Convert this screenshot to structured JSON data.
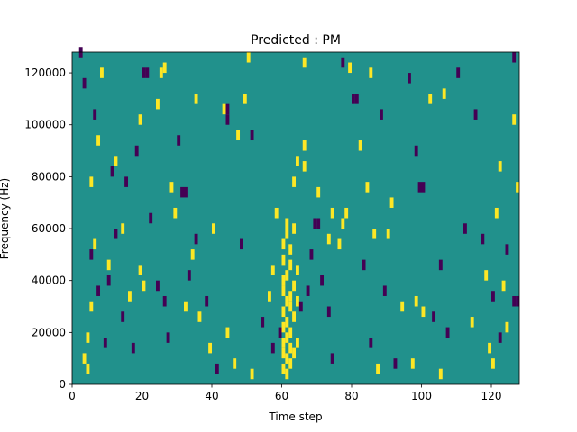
{
  "chart_data": {
    "type": "heatmap",
    "title": "Predicted : PM",
    "xlabel": "Time step",
    "ylabel": "Frequency (Hz)",
    "xlim": [
      0,
      128
    ],
    "ylim": [
      0,
      128000
    ],
    "x_ticks": [
      0,
      20,
      40,
      60,
      80,
      100,
      120
    ],
    "y_ticks": [
      0,
      20000,
      40000,
      60000,
      80000,
      100000,
      120000
    ],
    "colormap": "viridis",
    "colors": {
      "background": "#21918c",
      "high": "#fde725",
      "low": "#440154"
    },
    "cell_width_steps": 1,
    "cell_height_hz": 4000,
    "background_value": 0,
    "sparse_cells": [
      {
        "t": 3,
        "f": 8000,
        "v": 1
      },
      {
        "t": 4,
        "f": 4000,
        "v": 1
      },
      {
        "t": 4,
        "f": 16000,
        "v": 1
      },
      {
        "t": 5,
        "f": 28000,
        "v": 1
      },
      {
        "t": 6,
        "f": 52000,
        "v": 1
      },
      {
        "t": 5,
        "f": 76000,
        "v": 1
      },
      {
        "t": 7,
        "f": 92000,
        "v": 1
      },
      {
        "t": 8,
        "f": 118000,
        "v": 1
      },
      {
        "t": 10,
        "f": 44000,
        "v": 1
      },
      {
        "t": 12,
        "f": 84000,
        "v": 1
      },
      {
        "t": 14,
        "f": 58000,
        "v": 1
      },
      {
        "t": 16,
        "f": 32000,
        "v": 1
      },
      {
        "t": 19,
        "f": 42000,
        "v": 1
      },
      {
        "t": 20,
        "f": 36000,
        "v": 1
      },
      {
        "t": 19,
        "f": 100000,
        "v": 1
      },
      {
        "t": 24,
        "f": 106000,
        "v": 1
      },
      {
        "t": 25,
        "f": 118000,
        "v": 1
      },
      {
        "t": 26,
        "f": 120000,
        "v": 1
      },
      {
        "t": 28,
        "f": 74000,
        "v": 1
      },
      {
        "t": 29,
        "f": 64000,
        "v": 1
      },
      {
        "t": 32,
        "f": 28000,
        "v": 1
      },
      {
        "t": 34,
        "f": 48000,
        "v": 1
      },
      {
        "t": 35,
        "f": 108000,
        "v": 1
      },
      {
        "t": 36,
        "f": 24000,
        "v": 1
      },
      {
        "t": 39,
        "f": 12000,
        "v": 1
      },
      {
        "t": 40,
        "f": 58000,
        "v": 1
      },
      {
        "t": 43,
        "f": 104000,
        "v": 1
      },
      {
        "t": 44,
        "f": 18000,
        "v": 1
      },
      {
        "t": 46,
        "f": 6000,
        "v": 1
      },
      {
        "t": 47,
        "f": 94000,
        "v": 1
      },
      {
        "t": 49,
        "f": 108000,
        "v": 1
      },
      {
        "t": 50,
        "f": 124000,
        "v": 1
      },
      {
        "t": 51,
        "f": 2000,
        "v": 1
      },
      {
        "t": 56,
        "f": 32000,
        "v": 1
      },
      {
        "t": 57,
        "f": 42000,
        "v": 1
      },
      {
        "t": 58,
        "f": 64000,
        "v": 1
      },
      {
        "t": 60,
        "f": 4000,
        "v": 1
      },
      {
        "t": 60,
        "f": 10000,
        "v": 1
      },
      {
        "t": 60,
        "f": 14000,
        "v": 1
      },
      {
        "t": 60,
        "f": 20000,
        "v": 1
      },
      {
        "t": 60,
        "f": 26000,
        "v": 1
      },
      {
        "t": 60,
        "f": 34000,
        "v": 1
      },
      {
        "t": 60,
        "f": 38000,
        "v": 1
      },
      {
        "t": 60,
        "f": 46000,
        "v": 1
      },
      {
        "t": 60,
        "f": 52000,
        "v": 1
      },
      {
        "t": 61,
        "f": 2000,
        "v": 1
      },
      {
        "t": 61,
        "f": 8000,
        "v": 1
      },
      {
        "t": 61,
        "f": 16000,
        "v": 1
      },
      {
        "t": 61,
        "f": 22000,
        "v": 1
      },
      {
        "t": 61,
        "f": 30000,
        "v": 1
      },
      {
        "t": 61,
        "f": 40000,
        "v": 1
      },
      {
        "t": 61,
        "f": 56000,
        "v": 1
      },
      {
        "t": 61,
        "f": 60000,
        "v": 1
      },
      {
        "t": 62,
        "f": 6000,
        "v": 1
      },
      {
        "t": 62,
        "f": 12000,
        "v": 1
      },
      {
        "t": 62,
        "f": 18000,
        "v": 1
      },
      {
        "t": 62,
        "f": 28000,
        "v": 1
      },
      {
        "t": 62,
        "f": 32000,
        "v": 1
      },
      {
        "t": 62,
        "f": 44000,
        "v": 1
      },
      {
        "t": 62,
        "f": 50000,
        "v": 1
      },
      {
        "t": 63,
        "f": 10000,
        "v": 1
      },
      {
        "t": 63,
        "f": 24000,
        "v": 1
      },
      {
        "t": 63,
        "f": 36000,
        "v": 1
      },
      {
        "t": 63,
        "f": 58000,
        "v": 1
      },
      {
        "t": 64,
        "f": 14000,
        "v": 1
      },
      {
        "t": 64,
        "f": 30000,
        "v": 1
      },
      {
        "t": 64,
        "f": 42000,
        "v": 1
      },
      {
        "t": 63,
        "f": 76000,
        "v": 1
      },
      {
        "t": 64,
        "f": 84000,
        "v": 1
      },
      {
        "t": 66,
        "f": 82000,
        "v": 1
      },
      {
        "t": 66,
        "f": 90000,
        "v": 1
      },
      {
        "t": 66,
        "f": 122000,
        "v": 1
      },
      {
        "t": 70,
        "f": 72000,
        "v": 1
      },
      {
        "t": 73,
        "f": 54000,
        "v": 1
      },
      {
        "t": 74,
        "f": 64000,
        "v": 1
      },
      {
        "t": 76,
        "f": 52000,
        "v": 1
      },
      {
        "t": 77,
        "f": 60000,
        "v": 1
      },
      {
        "t": 78,
        "f": 64000,
        "v": 1
      },
      {
        "t": 79,
        "f": 120000,
        "v": 1
      },
      {
        "t": 82,
        "f": 90000,
        "v": 1
      },
      {
        "t": 84,
        "f": 74000,
        "v": 1
      },
      {
        "t": 85,
        "f": 118000,
        "v": 1
      },
      {
        "t": 86,
        "f": 56000,
        "v": 1
      },
      {
        "t": 87,
        "f": 4000,
        "v": 1
      },
      {
        "t": 90,
        "f": 56000,
        "v": 1
      },
      {
        "t": 91,
        "f": 68000,
        "v": 1
      },
      {
        "t": 94,
        "f": 28000,
        "v": 1
      },
      {
        "t": 97,
        "f": 6000,
        "v": 1
      },
      {
        "t": 98,
        "f": 30000,
        "v": 1
      },
      {
        "t": 100,
        "f": 26000,
        "v": 1
      },
      {
        "t": 102,
        "f": 108000,
        "v": 1
      },
      {
        "t": 105,
        "f": 2000,
        "v": 1
      },
      {
        "t": 106,
        "f": 110000,
        "v": 1
      },
      {
        "t": 114,
        "f": 22000,
        "v": 1
      },
      {
        "t": 118,
        "f": 40000,
        "v": 1
      },
      {
        "t": 119,
        "f": 12000,
        "v": 1
      },
      {
        "t": 120,
        "f": 6000,
        "v": 1
      },
      {
        "t": 121,
        "f": 64000,
        "v": 1
      },
      {
        "t": 122,
        "f": 82000,
        "v": 1
      },
      {
        "t": 123,
        "f": 36000,
        "v": 1
      },
      {
        "t": 124,
        "f": 20000,
        "v": 1
      },
      {
        "t": 126,
        "f": 100000,
        "v": 1
      },
      {
        "t": 127,
        "f": 74000,
        "v": 1
      },
      {
        "t": 2,
        "f": 126000,
        "v": -1
      },
      {
        "t": 3,
        "f": 114000,
        "v": -1
      },
      {
        "t": 5,
        "f": 48000,
        "v": -1
      },
      {
        "t": 6,
        "f": 102000,
        "v": -1
      },
      {
        "t": 7,
        "f": 34000,
        "v": -1
      },
      {
        "t": 9,
        "f": 14000,
        "v": -1
      },
      {
        "t": 10,
        "f": 38000,
        "v": -1
      },
      {
        "t": 11,
        "f": 80000,
        "v": -1
      },
      {
        "t": 12,
        "f": 56000,
        "v": -1
      },
      {
        "t": 14,
        "f": 24000,
        "v": -1
      },
      {
        "t": 15,
        "f": 76000,
        "v": -1
      },
      {
        "t": 17,
        "f": 12000,
        "v": -1
      },
      {
        "t": 18,
        "f": 88000,
        "v": -1
      },
      {
        "t": 20,
        "f": 118000,
        "v": -1
      },
      {
        "t": 21,
        "f": 118000,
        "v": -1
      },
      {
        "t": 22,
        "f": 62000,
        "v": -1
      },
      {
        "t": 24,
        "f": 36000,
        "v": -1
      },
      {
        "t": 26,
        "f": 30000,
        "v": -1
      },
      {
        "t": 27,
        "f": 16000,
        "v": -1
      },
      {
        "t": 30,
        "f": 92000,
        "v": -1
      },
      {
        "t": 31,
        "f": 72000,
        "v": -1
      },
      {
        "t": 32,
        "f": 72000,
        "v": -1
      },
      {
        "t": 33,
        "f": 40000,
        "v": -1
      },
      {
        "t": 35,
        "f": 54000,
        "v": -1
      },
      {
        "t": 38,
        "f": 30000,
        "v": -1
      },
      {
        "t": 41,
        "f": 4000,
        "v": -1
      },
      {
        "t": 44,
        "f": 104000,
        "v": -1
      },
      {
        "t": 44,
        "f": 100000,
        "v": -1
      },
      {
        "t": 48,
        "f": 52000,
        "v": -1
      },
      {
        "t": 51,
        "f": 94000,
        "v": -1
      },
      {
        "t": 54,
        "f": 22000,
        "v": -1
      },
      {
        "t": 57,
        "f": 12000,
        "v": -1
      },
      {
        "t": 59,
        "f": 18000,
        "v": -1
      },
      {
        "t": 65,
        "f": 28000,
        "v": -1
      },
      {
        "t": 67,
        "f": 34000,
        "v": -1
      },
      {
        "t": 68,
        "f": 48000,
        "v": -1
      },
      {
        "t": 69,
        "f": 60000,
        "v": -1
      },
      {
        "t": 70,
        "f": 60000,
        "v": -1
      },
      {
        "t": 71,
        "f": 38000,
        "v": -1
      },
      {
        "t": 73,
        "f": 26000,
        "v": -1
      },
      {
        "t": 74,
        "f": 8000,
        "v": -1
      },
      {
        "t": 77,
        "f": 122000,
        "v": -1
      },
      {
        "t": 80,
        "f": 108000,
        "v": -1
      },
      {
        "t": 81,
        "f": 108000,
        "v": -1
      },
      {
        "t": 83,
        "f": 44000,
        "v": -1
      },
      {
        "t": 85,
        "f": 14000,
        "v": -1
      },
      {
        "t": 88,
        "f": 102000,
        "v": -1
      },
      {
        "t": 89,
        "f": 34000,
        "v": -1
      },
      {
        "t": 92,
        "f": 6000,
        "v": -1
      },
      {
        "t": 96,
        "f": 116000,
        "v": -1
      },
      {
        "t": 98,
        "f": 88000,
        "v": -1
      },
      {
        "t": 99,
        "f": 74000,
        "v": -1
      },
      {
        "t": 100,
        "f": 74000,
        "v": -1
      },
      {
        "t": 103,
        "f": 24000,
        "v": -1
      },
      {
        "t": 105,
        "f": 44000,
        "v": -1
      },
      {
        "t": 107,
        "f": 18000,
        "v": -1
      },
      {
        "t": 110,
        "f": 118000,
        "v": -1
      },
      {
        "t": 112,
        "f": 58000,
        "v": -1
      },
      {
        "t": 115,
        "f": 102000,
        "v": -1
      },
      {
        "t": 117,
        "f": 54000,
        "v": -1
      },
      {
        "t": 120,
        "f": 32000,
        "v": -1
      },
      {
        "t": 122,
        "f": 16000,
        "v": -1
      },
      {
        "t": 124,
        "f": 50000,
        "v": -1
      },
      {
        "t": 126,
        "f": 30000,
        "v": -1
      },
      {
        "t": 127,
        "f": 30000,
        "v": -1
      },
      {
        "t": 126,
        "f": 124000,
        "v": -1
      }
    ]
  }
}
